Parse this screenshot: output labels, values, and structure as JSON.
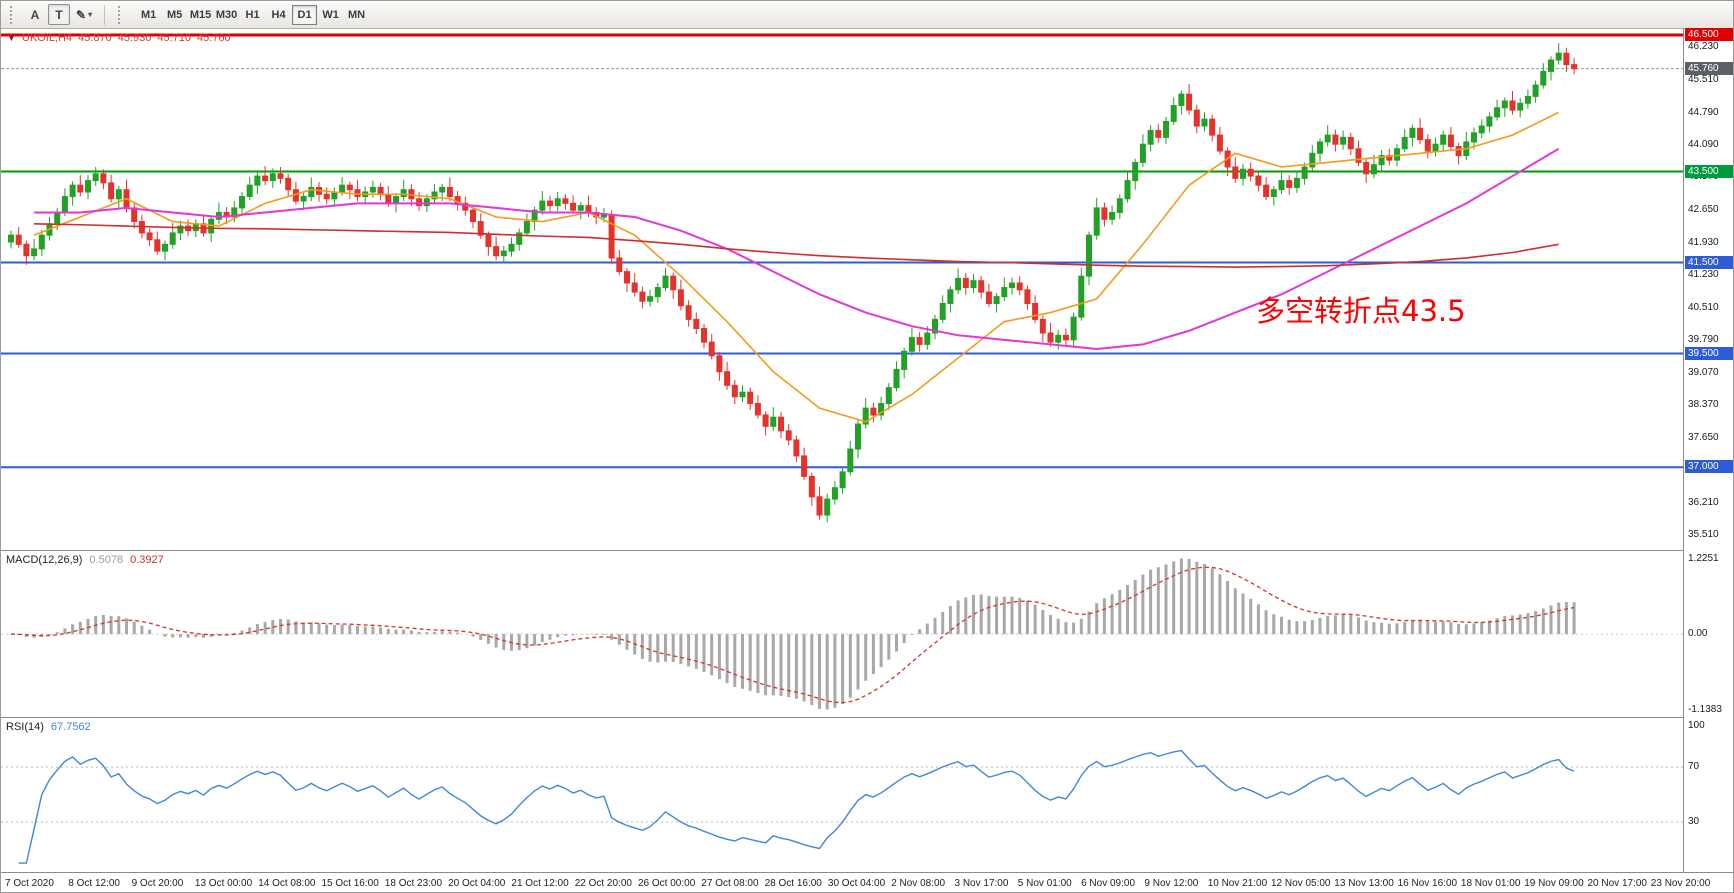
{
  "toolbar": {
    "font_tool": "A",
    "text_tool": "T",
    "draw_tool_icon": "✎",
    "caret": "▾",
    "timeframes": [
      "M1",
      "M5",
      "M15",
      "M30",
      "H1",
      "H4",
      "D1",
      "W1",
      "MN"
    ],
    "active_timeframe": "D1"
  },
  "chart_title": {
    "icon": "▼",
    "symbol": "UKOIL,H4",
    "open": "45.870",
    "high": "45.930",
    "low": "45.710",
    "close": "45.760"
  },
  "annotation": {
    "text": "多空转折点43.5",
    "color": "#ff0000"
  },
  "price_axis": {
    "ticks": [
      "46.230",
      "45.510",
      "44.790",
      "44.090",
      "43.370",
      "42.650",
      "41.930",
      "41.230",
      "40.510",
      "39.790",
      "39.070",
      "38.370",
      "37.650",
      "36.930",
      "36.210",
      "35.510"
    ],
    "badges": [
      {
        "label": "46.500",
        "value": 46.5,
        "bg": "#e00000"
      },
      {
        "label": "45.760",
        "value": 45.76,
        "bg": "#5b6069"
      },
      {
        "label": "43.500",
        "value": 43.5,
        "bg": "#009b3c"
      },
      {
        "label": "41.500",
        "value": 41.5,
        "bg": "#2e5bd7"
      },
      {
        "label": "39.500",
        "value": 39.5,
        "bg": "#2e5bd7"
      },
      {
        "label": "37.000",
        "value": 37.0,
        "bg": "#2e5bd7"
      }
    ]
  },
  "macd_panel": {
    "label": "MACD(12,26,9)",
    "value": "0.5078",
    "signal_value": "0.3927",
    "axis": [
      "1.2251",
      "0.00",
      "-1.1383"
    ]
  },
  "rsi_panel": {
    "label": "RSI(14)",
    "value": "67.7562",
    "axis": [
      "100",
      "70",
      "30"
    ]
  },
  "time_axis": {
    "labels": [
      "7 Oct 2020",
      "8 Oct 12:00",
      "9 Oct 20:00",
      "13 Oct 00:00",
      "14 Oct 08:00",
      "15 Oct 16:00",
      "18 Oct 23:00",
      "20 Oct 04:00",
      "21 Oct 12:00",
      "22 Oct 20:00",
      "26 Oct 00:00",
      "27 Oct 08:00",
      "28 Oct 16:00",
      "30 Oct 04:00",
      "2 Nov 08:00",
      "3 Nov 17:00",
      "5 Nov 01:00",
      "6 Nov 09:00",
      "9 Nov 12:00",
      "10 Nov 21:00",
      "12 Nov 05:00",
      "13 Nov 13:00",
      "16 Nov 16:00",
      "18 Nov 01:00",
      "19 Nov 09:00",
      "20 Nov 17:00",
      "23 Nov 20:00"
    ]
  },
  "chart_data": {
    "type": "candlestick",
    "symbol": "UKOIL",
    "period": "H4",
    "date_range": [
      "7 Oct 2020",
      "23 Nov 2020"
    ],
    "price_range_visible": [
      35.51,
      46.5
    ],
    "current_bar": {
      "open": 45.87,
      "high": 45.93,
      "low": 45.71,
      "close": 45.76
    },
    "up_color": "#21a126",
    "down_color": "#e3332c",
    "first_open": 41.95,
    "closes": [
      42.1,
      41.9,
      41.65,
      41.8,
      42.1,
      42.35,
      42.6,
      42.95,
      43.2,
      43.05,
      43.3,
      43.45,
      43.25,
      42.9,
      43.1,
      42.7,
      42.4,
      42.15,
      42.0,
      41.75,
      41.9,
      42.15,
      42.3,
      42.2,
      42.35,
      42.15,
      42.45,
      42.6,
      42.5,
      42.7,
      42.95,
      43.2,
      43.4,
      43.3,
      43.45,
      43.35,
      43.1,
      42.85,
      42.95,
      43.15,
      43.0,
      42.9,
      43.05,
      43.2,
      43.1,
      42.95,
      43.05,
      43.15,
      43.0,
      42.8,
      42.95,
      43.1,
      42.9,
      42.75,
      42.9,
      43.05,
      43.15,
      42.95,
      42.8,
      42.65,
      42.4,
      42.1,
      41.85,
      41.65,
      41.75,
      41.9,
      42.15,
      42.4,
      42.65,
      42.85,
      42.75,
      42.9,
      42.8,
      42.65,
      42.75,
      42.6,
      42.5,
      42.55,
      41.6,
      41.3,
      41.05,
      40.85,
      40.65,
      40.75,
      40.95,
      41.2,
      40.9,
      40.55,
      40.25,
      40.05,
      39.75,
      39.45,
      39.1,
      38.8,
      38.55,
      38.65,
      38.4,
      38.15,
      37.9,
      38.1,
      37.8,
      37.6,
      37.25,
      36.8,
      36.35,
      35.95,
      36.3,
      36.55,
      36.9,
      37.4,
      37.95,
      38.3,
      38.15,
      38.4,
      38.75,
      39.15,
      39.55,
      39.85,
      39.7,
      39.95,
      40.25,
      40.6,
      40.9,
      41.15,
      40.95,
      41.1,
      40.85,
      40.6,
      40.75,
      40.95,
      41.05,
      40.9,
      40.6,
      40.25,
      39.95,
      39.75,
      39.9,
      39.8,
      40.3,
      41.2,
      42.1,
      42.7,
      42.45,
      42.6,
      42.9,
      43.3,
      43.7,
      44.1,
      44.4,
      44.25,
      44.6,
      44.95,
      45.2,
      44.85,
      44.5,
      44.65,
      44.3,
      43.95,
      43.6,
      43.35,
      43.55,
      43.4,
      43.2,
      42.95,
      43.1,
      43.3,
      43.15,
      43.35,
      43.6,
      43.9,
      44.15,
      44.3,
      44.1,
      44.25,
      44.0,
      43.7,
      43.45,
      43.65,
      43.85,
      43.75,
      44.0,
      44.25,
      44.45,
      44.2,
      43.95,
      44.1,
      44.3,
      44.05,
      43.85,
      44.15,
      44.35,
      44.5,
      44.7,
      44.9,
      45.05,
      44.85,
      45.0,
      45.15,
      45.4,
      45.7,
      45.95,
      46.1,
      45.85,
      45.76
    ],
    "wick_up_cycle": [
      0.1,
      0.18,
      0.08,
      0.22,
      0.12,
      0.15
    ],
    "wick_down_cycle": [
      0.14,
      0.08,
      0.2,
      0.1,
      0.16,
      0.12
    ],
    "hlines": [
      {
        "value": 46.5,
        "color": "#dd0000",
        "width": 3
      },
      {
        "value": 43.5,
        "color": "#009b00",
        "width": 2
      },
      {
        "value": 41.5,
        "color": "#2e5bd7",
        "width": 2
      },
      {
        "value": 39.5,
        "color": "#2e5bd7",
        "width": 2
      },
      {
        "value": 37.0,
        "color": "#2e5bd7",
        "width": 2
      }
    ],
    "bid_line": {
      "value": 45.76,
      "color": "#8b9bb4"
    },
    "moving_averages": [
      {
        "name": "ma-fast",
        "color": "#f29b1d",
        "daily_values": [
          42.1,
          42.5,
          42.9,
          42.4,
          42.3,
          42.8,
          43.1,
          43.0,
          43.0,
          42.9,
          42.5,
          42.4,
          42.6,
          42.1,
          41.2,
          40.2,
          39.1,
          38.3,
          38.0,
          38.6,
          39.4,
          40.2,
          40.4,
          40.7,
          41.9,
          43.2,
          43.9,
          43.6,
          43.7,
          43.8,
          43.9,
          44.0,
          44.3,
          44.8
        ]
      },
      {
        "name": "ma-medium",
        "color": "#e436d6",
        "daily_values": [
          42.6,
          42.6,
          42.7,
          42.6,
          42.5,
          42.6,
          42.7,
          42.8,
          42.8,
          42.8,
          42.7,
          42.6,
          42.6,
          42.5,
          42.2,
          41.8,
          41.3,
          40.8,
          40.4,
          40.1,
          39.9,
          39.8,
          39.7,
          39.6,
          39.7,
          40.0,
          40.4,
          40.8,
          41.3,
          41.8,
          42.3,
          42.8,
          43.4,
          44.0
        ]
      },
      {
        "name": "ma-slow",
        "color": "#cf2e2e",
        "daily_values": [
          42.35,
          42.33,
          42.3,
          42.27,
          42.25,
          42.24,
          42.22,
          42.2,
          42.18,
          42.16,
          42.12,
          42.08,
          42.05,
          41.98,
          41.9,
          41.8,
          41.72,
          41.65,
          41.6,
          41.56,
          41.52,
          41.5,
          41.47,
          41.44,
          41.42,
          41.41,
          41.4,
          41.41,
          41.43,
          41.47,
          41.52,
          41.6,
          41.72,
          41.9
        ]
      }
    ],
    "macd": {
      "fast": 12,
      "slow": 26,
      "signal": 9,
      "current": 0.5078,
      "current_signal": 0.3927,
      "histogram_color": "#a8a8a8",
      "signal_color": "#d2342e",
      "axis_range": [
        -1.1383,
        1.2251
      ]
    },
    "rsi": {
      "period": 14,
      "current": 67.7562,
      "color": "#3f87d9",
      "levels": [
        70,
        30
      ],
      "range": [
        0,
        100
      ]
    }
  }
}
